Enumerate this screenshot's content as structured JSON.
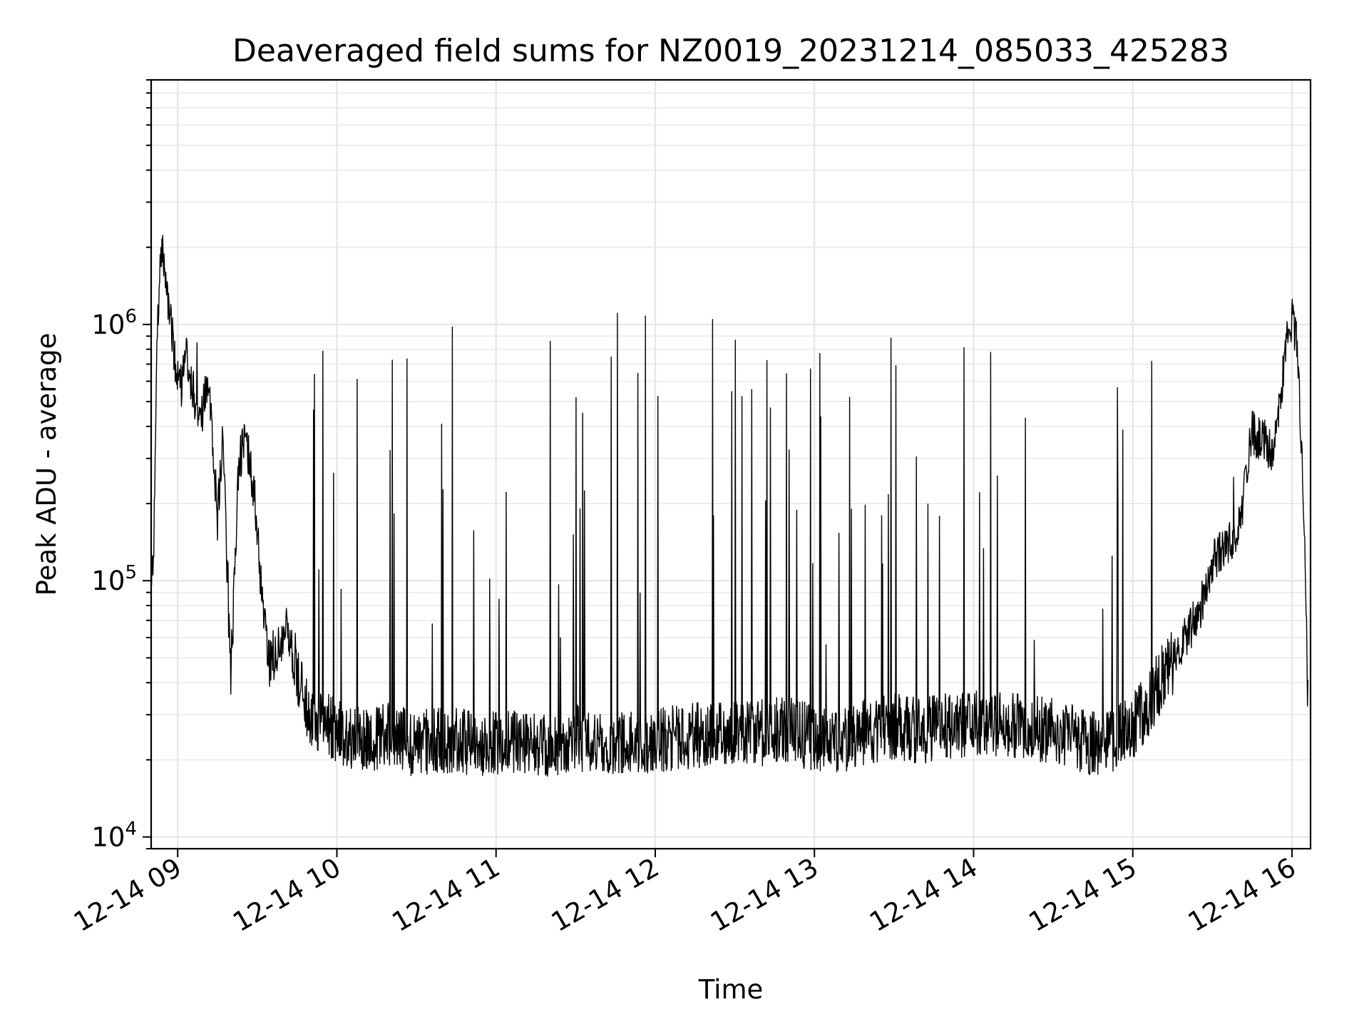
{
  "chart_data": {
    "type": "line",
    "title": "Deaveraged field sums for NZ0019_20231214_085033_425283",
    "xlabel": "Time",
    "ylabel": "Peak ADU - average",
    "yscale": "log",
    "grid": true,
    "xlim": [
      "2023-12-14 08:50",
      "2023-12-14 16:07"
    ],
    "ylim": [
      9000,
      9000000
    ],
    "x_ticks": [
      {
        "value": "2023-12-14 09:00",
        "label": "12-14 09"
      },
      {
        "value": "2023-12-14 10:00",
        "label": "12-14 10"
      },
      {
        "value": "2023-12-14 11:00",
        "label": "12-14 11"
      },
      {
        "value": "2023-12-14 12:00",
        "label": "12-14 12"
      },
      {
        "value": "2023-12-14 13:00",
        "label": "12-14 13"
      },
      {
        "value": "2023-12-14 14:00",
        "label": "12-14 14"
      },
      {
        "value": "2023-12-14 15:00",
        "label": "12-14 15"
      },
      {
        "value": "2023-12-14 16:00",
        "label": "12-14 16"
      }
    ],
    "y_ticks": [
      {
        "value": 10000,
        "base": "10",
        "exp": "4"
      },
      {
        "value": 100000,
        "base": "10",
        "exp": "5"
      },
      {
        "value": 1000000,
        "base": "10",
        "exp": "6"
      }
    ],
    "series": [
      {
        "color": "#000000",
        "points": [
          [
            "2023-12-14 08:50",
            95000
          ],
          [
            "2023-12-14 08:51",
            130000
          ],
          [
            "2023-12-14 08:52",
            700000
          ],
          [
            "2023-12-14 08:53",
            1500000
          ],
          [
            "2023-12-14 08:54",
            2050000
          ],
          [
            "2023-12-14 08:55",
            1650000
          ],
          [
            "2023-12-14 08:57",
            1150000
          ],
          [
            "2023-12-14 08:59",
            700000
          ],
          [
            "2023-12-14 09:01",
            550000
          ],
          [
            "2023-12-14 09:03",
            750000
          ],
          [
            "2023-12-14 09:05",
            600000
          ],
          [
            "2023-12-14 09:07",
            480000
          ],
          [
            "2023-12-14 09:09",
            420000
          ],
          [
            "2023-12-14 09:11",
            600000
          ],
          [
            "2023-12-14 09:13",
            380000
          ],
          [
            "2023-12-14 09:15",
            170000
          ],
          [
            "2023-12-14 09:17",
            380000
          ],
          [
            "2023-12-14 09:20",
            38000
          ],
          [
            "2023-12-14 09:23",
            300000
          ],
          [
            "2023-12-14 09:26",
            350000
          ],
          [
            "2023-12-14 09:29",
            220000
          ],
          [
            "2023-12-14 09:32",
            80000
          ],
          [
            "2023-12-14 09:35",
            45000
          ],
          [
            "2023-12-14 09:38",
            55000
          ],
          [
            "2023-12-14 09:41",
            65000
          ],
          [
            "2023-12-14 09:44",
            48000
          ],
          [
            "2023-12-14 09:47",
            35000
          ],
          [
            "2023-12-14 09:50",
            30000
          ],
          [
            "2023-12-14 09:55",
            28000
          ],
          [
            "2023-12-14 10:00",
            26000
          ],
          [
            "2023-12-14 10:10",
            24000
          ],
          [
            "2023-12-14 10:20",
            25000
          ],
          [
            "2023-12-14 10:30",
            23000
          ],
          [
            "2023-12-14 10:40",
            24000
          ],
          [
            "2023-12-14 10:50",
            23500
          ],
          [
            "2023-12-14 11:00",
            23000
          ],
          [
            "2023-12-14 11:10",
            24000
          ],
          [
            "2023-12-14 11:20",
            23000
          ],
          [
            "2023-12-14 11:30",
            24500
          ],
          [
            "2023-12-14 11:40",
            23500
          ],
          [
            "2023-12-14 11:50",
            23000
          ],
          [
            "2023-12-14 12:00",
            24000
          ],
          [
            "2023-12-14 12:10",
            24500
          ],
          [
            "2023-12-14 12:20",
            25000
          ],
          [
            "2023-12-14 12:30",
            26000
          ],
          [
            "2023-12-14 12:40",
            25500
          ],
          [
            "2023-12-14 12:50",
            26500
          ],
          [
            "2023-12-14 13:00",
            24000
          ],
          [
            "2023-12-14 13:10",
            23000
          ],
          [
            "2023-12-14 13:20",
            26000
          ],
          [
            "2023-12-14 13:30",
            27000
          ],
          [
            "2023-12-14 13:40",
            26000
          ],
          [
            "2023-12-14 13:50",
            27000
          ],
          [
            "2023-12-14 14:00",
            27500
          ],
          [
            "2023-12-14 14:10",
            28000
          ],
          [
            "2023-12-14 14:20",
            27000
          ],
          [
            "2023-12-14 14:30",
            26000
          ],
          [
            "2023-12-14 14:40",
            24000
          ],
          [
            "2023-12-14 14:50",
            23000
          ],
          [
            "2023-12-14 15:00",
            27000
          ],
          [
            "2023-12-14 15:05",
            32000
          ],
          [
            "2023-12-14 15:10",
            40000
          ],
          [
            "2023-12-14 15:15",
            48000
          ],
          [
            "2023-12-14 15:20",
            60000
          ],
          [
            "2023-12-14 15:25",
            75000
          ],
          [
            "2023-12-14 15:30",
            120000
          ],
          [
            "2023-12-14 15:35",
            135000
          ],
          [
            "2023-12-14 15:40",
            160000
          ],
          [
            "2023-12-14 15:45",
            380000
          ],
          [
            "2023-12-14 15:50",
            350000
          ],
          [
            "2023-12-14 15:53",
            300000
          ],
          [
            "2023-12-14 15:56",
            550000
          ],
          [
            "2023-12-14 15:58",
            850000
          ],
          [
            "2023-12-14 16:00",
            1050000
          ],
          [
            "2023-12-14 16:02",
            800000
          ],
          [
            "2023-12-14 16:03",
            450000
          ],
          [
            "2023-12-14 16:04",
            250000
          ],
          [
            "2023-12-14 16:05",
            110000
          ],
          [
            "2023-12-14 16:06",
            35000
          ]
        ]
      }
    ]
  }
}
